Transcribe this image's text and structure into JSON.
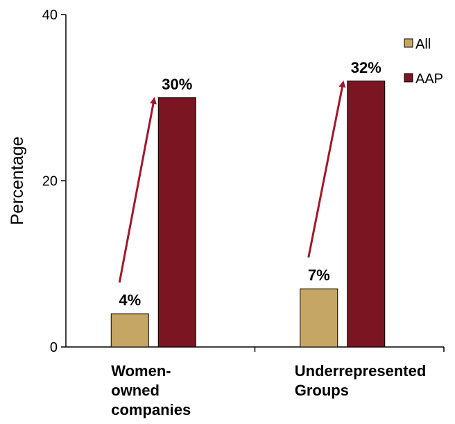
{
  "chart_data": {
    "type": "bar",
    "ylabel": "Percentage",
    "ylim": [
      0,
      40
    ],
    "yticks": [
      0,
      20,
      40
    ],
    "categories": [
      [
        "Women-",
        "owned",
        "companies"
      ],
      [
        "Underrepresented",
        "Groups"
      ]
    ],
    "series": [
      {
        "name": "All",
        "color": "#C6A664",
        "values": [
          4,
          7
        ],
        "labels": [
          "4%",
          "7%"
        ]
      },
      {
        "name": "AAP",
        "color": "#7B1522",
        "values": [
          30,
          32
        ],
        "labels": [
          "30%",
          "32%"
        ]
      }
    ],
    "arrow_color": "#A0182C",
    "legend_position": "top-right",
    "grid": false
  }
}
